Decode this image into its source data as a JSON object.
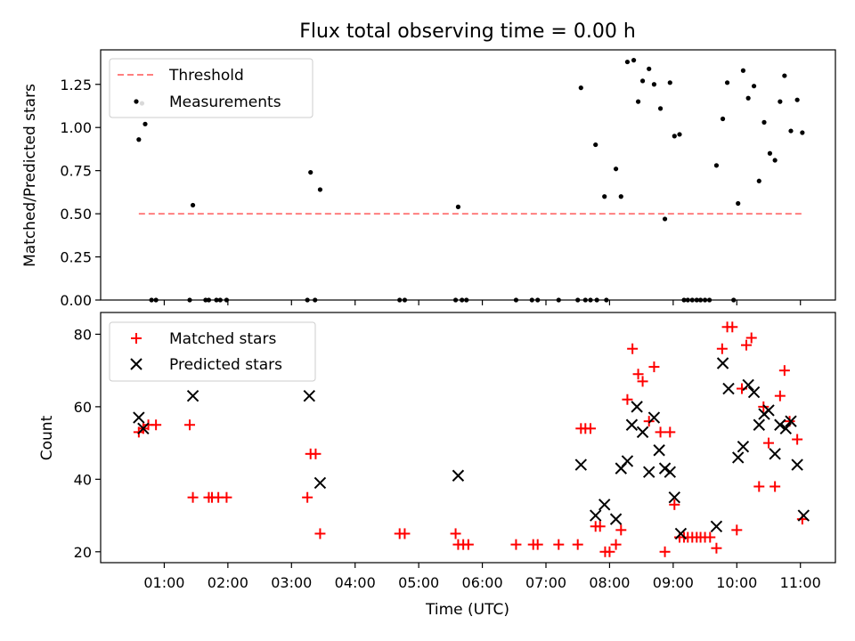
{
  "chart_data": [
    {
      "type": "scatter",
      "title": "Flux total observing time = 0.00 h",
      "xlabel": "",
      "ylabel": "Matched/Predicted stars",
      "x_unit": "hours UTC",
      "xlim": [
        0.0,
        11.55
      ],
      "ylim": [
        0,
        1.45
      ],
      "grid": false,
      "legend_position": "upper-left",
      "x_ticks": [
        "01:00",
        "02:00",
        "03:00",
        "04:00",
        "05:00",
        "06:00",
        "07:00",
        "08:00",
        "09:00",
        "10:00",
        "11:00"
      ],
      "y_ticks": [
        "0.00",
        "0.25",
        "0.50",
        "0.75",
        "1.00",
        "1.25"
      ],
      "threshold": {
        "name": "Threshold",
        "value": 0.5,
        "x_range": [
          0.6,
          11.05
        ],
        "color": "#ff7f7f"
      },
      "series": [
        {
          "name": "Measurements",
          "color": "#000000",
          "marker": "dot",
          "points": [
            [
              0.6,
              0.93
            ],
            [
              0.65,
              1.14
            ],
            [
              0.7,
              1.02
            ],
            [
              0.8,
              0.0
            ],
            [
              0.87,
              0.0
            ],
            [
              1.4,
              0.0
            ],
            [
              1.45,
              0.55
            ],
            [
              1.65,
              0.0
            ],
            [
              1.7,
              0.0
            ],
            [
              1.82,
              0.0
            ],
            [
              1.88,
              0.0
            ],
            [
              1.98,
              0.0
            ],
            [
              3.25,
              0.0
            ],
            [
              3.3,
              0.74
            ],
            [
              3.37,
              0.0
            ],
            [
              3.45,
              0.64
            ],
            [
              4.7,
              0.0
            ],
            [
              4.78,
              0.0
            ],
            [
              5.58,
              0.0
            ],
            [
              5.62,
              0.54
            ],
            [
              5.68,
              0.0
            ],
            [
              5.75,
              0.0
            ],
            [
              6.53,
              0.0
            ],
            [
              6.78,
              0.0
            ],
            [
              6.87,
              0.0
            ],
            [
              7.2,
              0.0
            ],
            [
              7.5,
              0.0
            ],
            [
              7.55,
              1.23
            ],
            [
              7.62,
              0.0
            ],
            [
              7.7,
              0.0
            ],
            [
              7.78,
              0.9
            ],
            [
              7.8,
              0.0
            ],
            [
              7.92,
              0.6
            ],
            [
              7.95,
              0.0
            ],
            [
              8.1,
              0.76
            ],
            [
              8.18,
              0.6
            ],
            [
              8.28,
              1.38
            ],
            [
              8.38,
              1.39
            ],
            [
              8.45,
              1.15
            ],
            [
              8.52,
              1.27
            ],
            [
              8.62,
              1.34
            ],
            [
              8.7,
              1.25
            ],
            [
              8.8,
              1.11
            ],
            [
              8.87,
              0.47
            ],
            [
              8.95,
              1.26
            ],
            [
              9.02,
              0.95
            ],
            [
              9.1,
              0.96
            ],
            [
              9.17,
              0.0
            ],
            [
              9.23,
              0.0
            ],
            [
              9.3,
              0.0
            ],
            [
              9.37,
              0.0
            ],
            [
              9.43,
              0.0
            ],
            [
              9.5,
              0.0
            ],
            [
              9.57,
              0.0
            ],
            [
              9.68,
              0.78
            ],
            [
              9.78,
              1.05
            ],
            [
              9.85,
              1.26
            ],
            [
              9.95,
              0.0
            ],
            [
              10.02,
              0.56
            ],
            [
              10.1,
              1.33
            ],
            [
              10.18,
              1.17
            ],
            [
              10.27,
              1.24
            ],
            [
              10.35,
              0.69
            ],
            [
              10.43,
              1.03
            ],
            [
              10.52,
              0.85
            ],
            [
              10.6,
              0.81
            ],
            [
              10.68,
              1.15
            ],
            [
              10.75,
              1.3
            ],
            [
              10.85,
              0.98
            ],
            [
              10.95,
              1.16
            ],
            [
              11.03,
              0.97
            ]
          ]
        }
      ]
    },
    {
      "type": "scatter",
      "title": "",
      "xlabel": "Time (UTC)",
      "ylabel": "Count",
      "x_unit": "hours UTC",
      "xlim": [
        0.0,
        11.55
      ],
      "ylim": [
        17,
        86
      ],
      "grid": false,
      "legend_position": "upper-left",
      "x_ticks": [
        "01:00",
        "02:00",
        "03:00",
        "04:00",
        "05:00",
        "06:00",
        "07:00",
        "08:00",
        "09:00",
        "10:00",
        "11:00"
      ],
      "y_ticks": [
        "20",
        "40",
        "60",
        "80"
      ],
      "series": [
        {
          "name": "Matched stars",
          "color": "#ff0000",
          "marker": "plus",
          "points": [
            [
              0.6,
              53
            ],
            [
              0.67,
              54
            ],
            [
              0.75,
              55
            ],
            [
              0.87,
              55
            ],
            [
              1.4,
              55
            ],
            [
              1.45,
              35
            ],
            [
              1.7,
              35
            ],
            [
              1.75,
              35
            ],
            [
              1.85,
              35
            ],
            [
              1.98,
              35
            ],
            [
              3.25,
              35
            ],
            [
              3.3,
              47
            ],
            [
              3.38,
              47
            ],
            [
              3.45,
              25
            ],
            [
              4.7,
              25
            ],
            [
              4.78,
              25
            ],
            [
              5.58,
              25
            ],
            [
              5.62,
              22
            ],
            [
              5.7,
              22
            ],
            [
              5.78,
              22
            ],
            [
              6.53,
              22
            ],
            [
              6.8,
              22
            ],
            [
              6.87,
              22
            ],
            [
              7.2,
              22
            ],
            [
              7.5,
              22
            ],
            [
              7.55,
              54
            ],
            [
              7.62,
              54
            ],
            [
              7.7,
              54
            ],
            [
              7.78,
              27
            ],
            [
              7.85,
              27
            ],
            [
              7.93,
              20
            ],
            [
              8.0,
              20
            ],
            [
              8.1,
              22
            ],
            [
              8.18,
              26
            ],
            [
              8.28,
              62
            ],
            [
              8.36,
              76
            ],
            [
              8.45,
              69
            ],
            [
              8.52,
              67
            ],
            [
              8.62,
              56
            ],
            [
              8.7,
              71
            ],
            [
              8.8,
              53
            ],
            [
              8.87,
              20
            ],
            [
              8.95,
              53
            ],
            [
              9.02,
              33
            ],
            [
              9.1,
              24
            ],
            [
              9.17,
              24
            ],
            [
              9.23,
              24
            ],
            [
              9.3,
              24
            ],
            [
              9.37,
              24
            ],
            [
              9.43,
              24
            ],
            [
              9.5,
              24
            ],
            [
              9.58,
              24
            ],
            [
              9.68,
              21
            ],
            [
              9.77,
              76
            ],
            [
              9.85,
              82
            ],
            [
              9.93,
              82
            ],
            [
              10.0,
              26
            ],
            [
              10.08,
              65
            ],
            [
              10.15,
              77
            ],
            [
              10.23,
              79
            ],
            [
              10.35,
              38
            ],
            [
              10.42,
              60
            ],
            [
              10.5,
              50
            ],
            [
              10.6,
              38
            ],
            [
              10.68,
              63
            ],
            [
              10.75,
              70
            ],
            [
              10.83,
              56
            ],
            [
              10.95,
              51
            ],
            [
              11.03,
              29
            ]
          ]
        },
        {
          "name": "Predicted stars",
          "color": "#000000",
          "marker": "x",
          "points": [
            [
              0.6,
              57
            ],
            [
              0.67,
              54
            ],
            [
              1.45,
              63
            ],
            [
              3.28,
              63
            ],
            [
              3.45,
              39
            ],
            [
              5.62,
              41
            ],
            [
              7.55,
              44
            ],
            [
              7.78,
              30
            ],
            [
              7.92,
              33
            ],
            [
              8.1,
              29
            ],
            [
              8.18,
              43
            ],
            [
              8.28,
              45
            ],
            [
              8.35,
              55
            ],
            [
              8.43,
              60
            ],
            [
              8.52,
              53
            ],
            [
              8.62,
              42
            ],
            [
              8.7,
              57
            ],
            [
              8.78,
              48
            ],
            [
              8.87,
              43
            ],
            [
              8.95,
              42
            ],
            [
              9.02,
              35
            ],
            [
              9.12,
              25
            ],
            [
              9.68,
              27
            ],
            [
              9.78,
              72
            ],
            [
              9.87,
              65
            ],
            [
              10.02,
              46
            ],
            [
              10.1,
              49
            ],
            [
              10.18,
              66
            ],
            [
              10.27,
              64
            ],
            [
              10.35,
              55
            ],
            [
              10.43,
              58
            ],
            [
              10.5,
              59
            ],
            [
              10.6,
              47
            ],
            [
              10.68,
              55
            ],
            [
              10.77,
              54
            ],
            [
              10.85,
              56
            ],
            [
              10.95,
              44
            ],
            [
              11.05,
              30
            ]
          ]
        }
      ]
    }
  ]
}
